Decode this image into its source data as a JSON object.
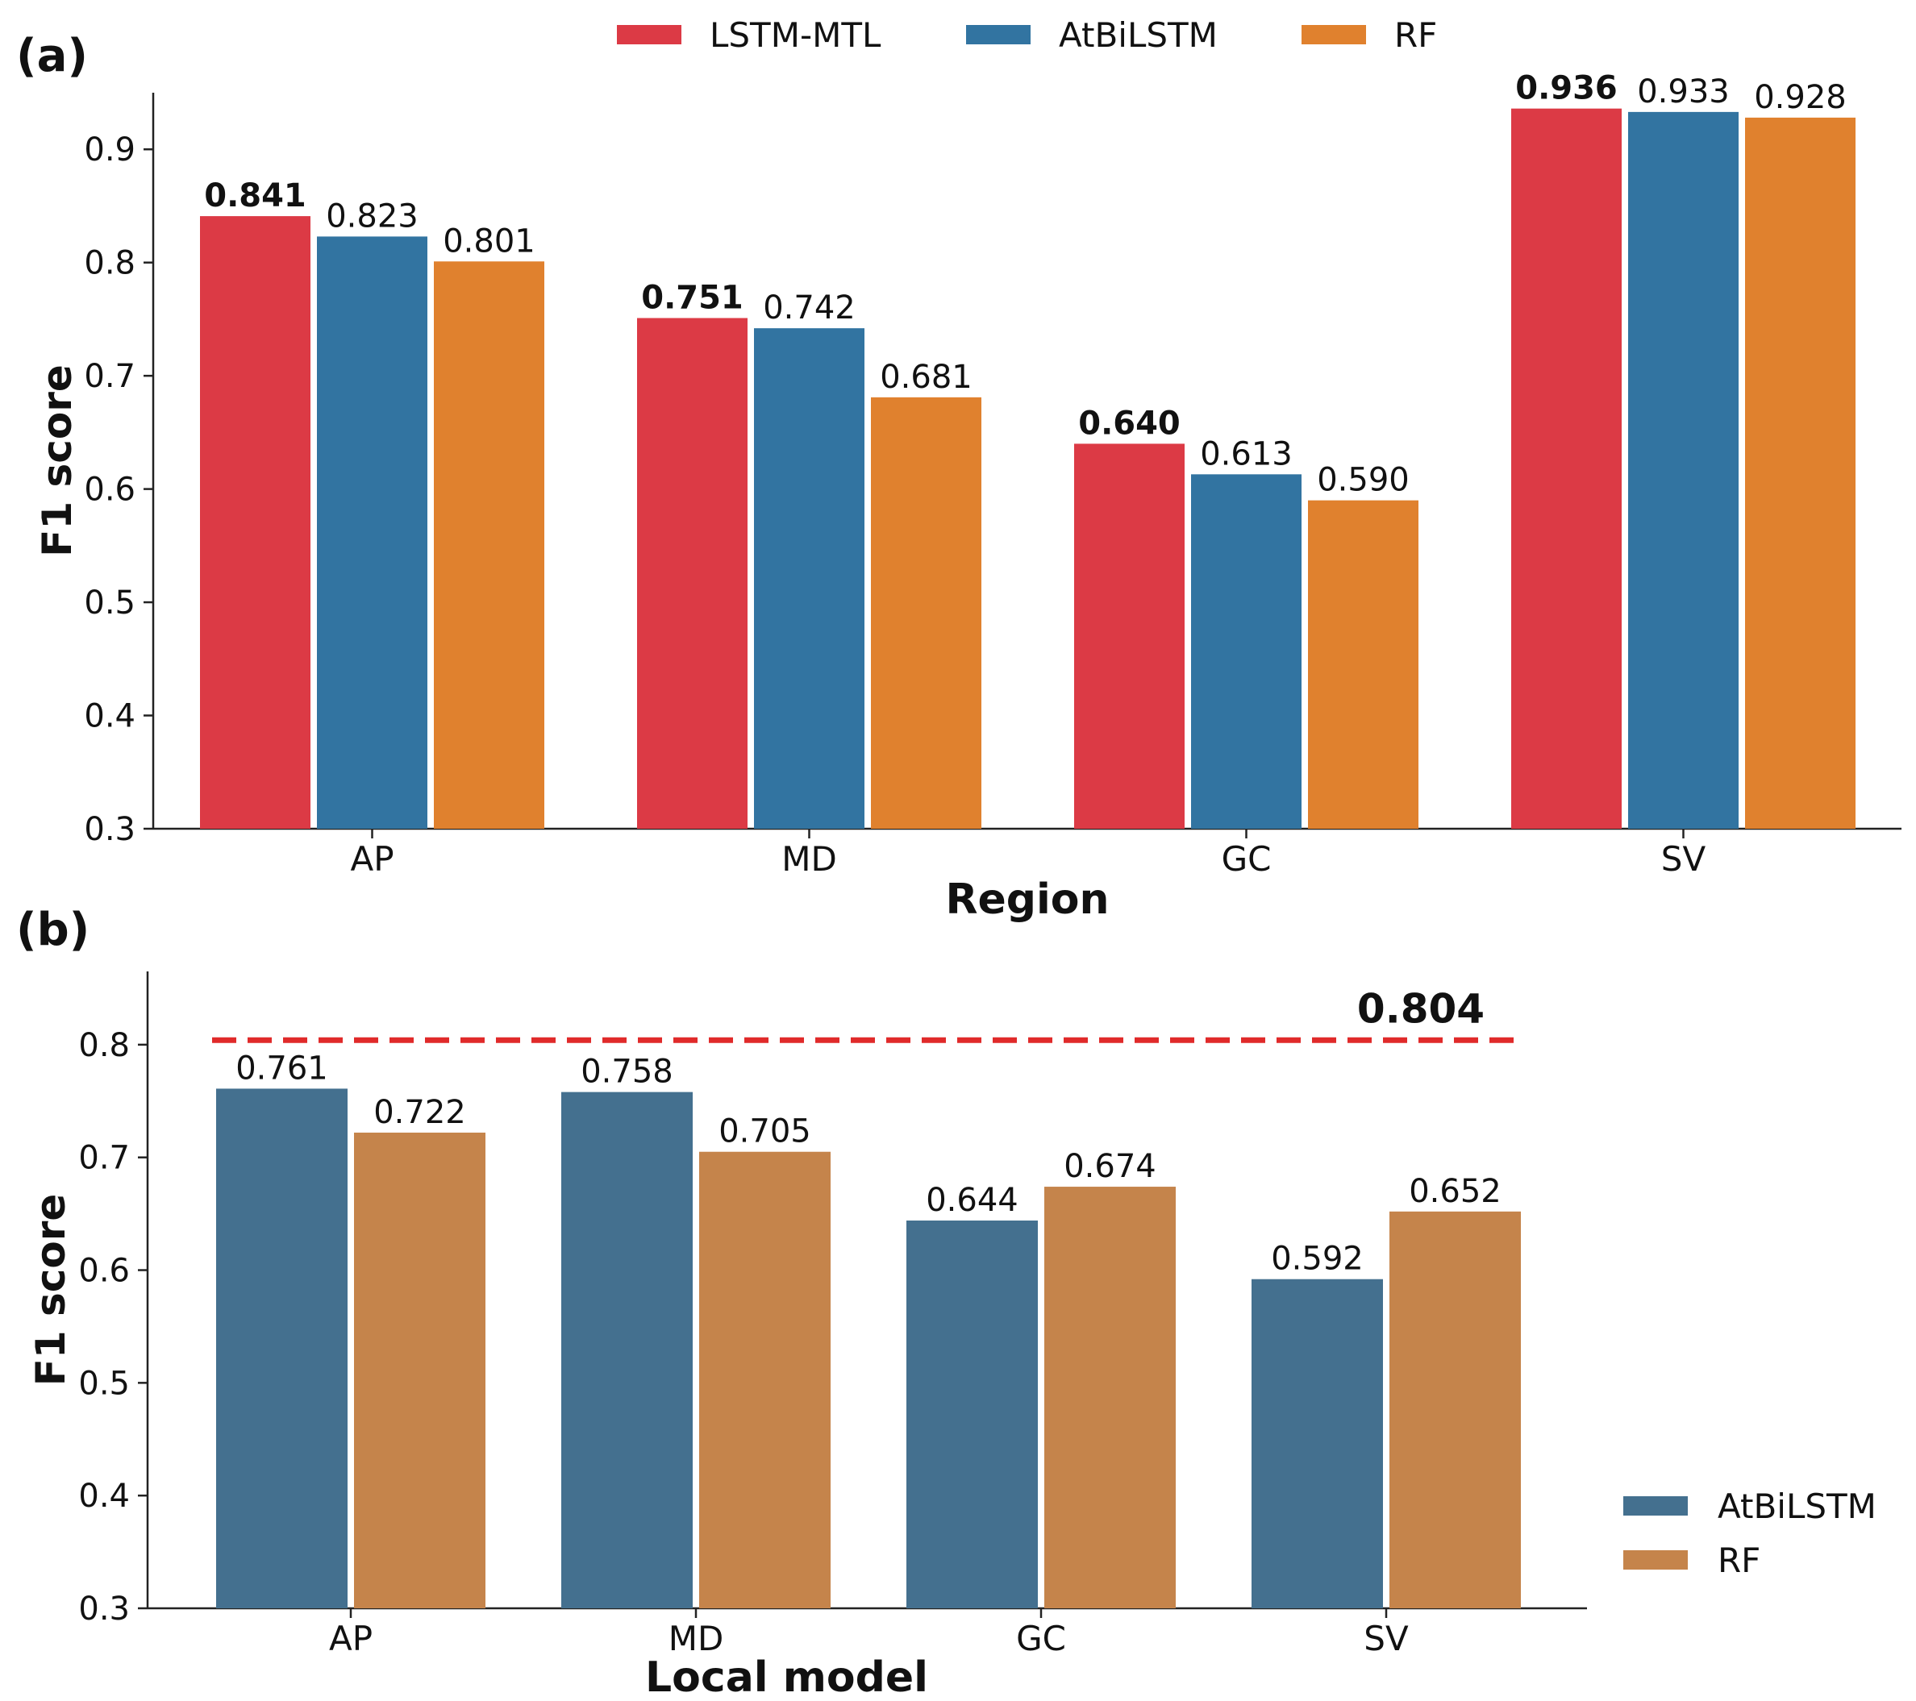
{
  "chart_data": [
    {
      "panel_label": "(a)",
      "type": "bar",
      "categories": [
        "AP",
        "MD",
        "GC",
        "SV"
      ],
      "series": [
        {
          "name": "LSTM-MTL",
          "color": "#dc3a45",
          "values": [
            0.841,
            0.751,
            0.64,
            0.936
          ],
          "labels": [
            "0.841",
            "0.751",
            "0.640",
            "0.936"
          ],
          "bold_labels": true
        },
        {
          "name": "AtBiLSTM",
          "color": "#3274a1",
          "values": [
            0.823,
            0.742,
            0.613,
            0.933
          ],
          "labels": [
            "0.823",
            "0.742",
            "0.613",
            "0.933"
          ],
          "bold_labels": false
        },
        {
          "name": "RF",
          "color": "#e0812e",
          "values": [
            0.801,
            0.681,
            0.59,
            0.928
          ],
          "labels": [
            "0.801",
            "0.681",
            "0.590",
            "0.928"
          ],
          "bold_labels": false
        }
      ],
      "xlabel": "Region",
      "ylabel": "F1 score",
      "ylim": [
        0.3,
        0.95
      ],
      "yticks": [
        "0.3",
        "0.4",
        "0.5",
        "0.6",
        "0.7",
        "0.8",
        "0.9"
      ],
      "legend_position": "top"
    },
    {
      "panel_label": "(b)",
      "type": "bar",
      "categories": [
        "AP",
        "MD",
        "GC",
        "SV"
      ],
      "series": [
        {
          "name": "AtBiLSTM",
          "color": "#44708f",
          "values": [
            0.761,
            0.758,
            0.644,
            0.592
          ],
          "labels": [
            "0.761",
            "0.758",
            "0.644",
            "0.592"
          ],
          "bold_labels": false
        },
        {
          "name": "RF",
          "color": "#c5844b",
          "values": [
            0.722,
            0.705,
            0.674,
            0.652
          ],
          "labels": [
            "0.722",
            "0.705",
            "0.674",
            "0.652"
          ],
          "bold_labels": false
        }
      ],
      "reference_line": {
        "value": 0.804,
        "label": "0.804",
        "color": "#e02a2a",
        "style": "dashed"
      },
      "xlabel": "Local model",
      "ylabel": "F1 score",
      "ylim": [
        0.3,
        0.865
      ],
      "yticks": [
        "0.3",
        "0.4",
        "0.5",
        "0.6",
        "0.7",
        "0.8"
      ],
      "legend_position": "lower-right"
    }
  ]
}
